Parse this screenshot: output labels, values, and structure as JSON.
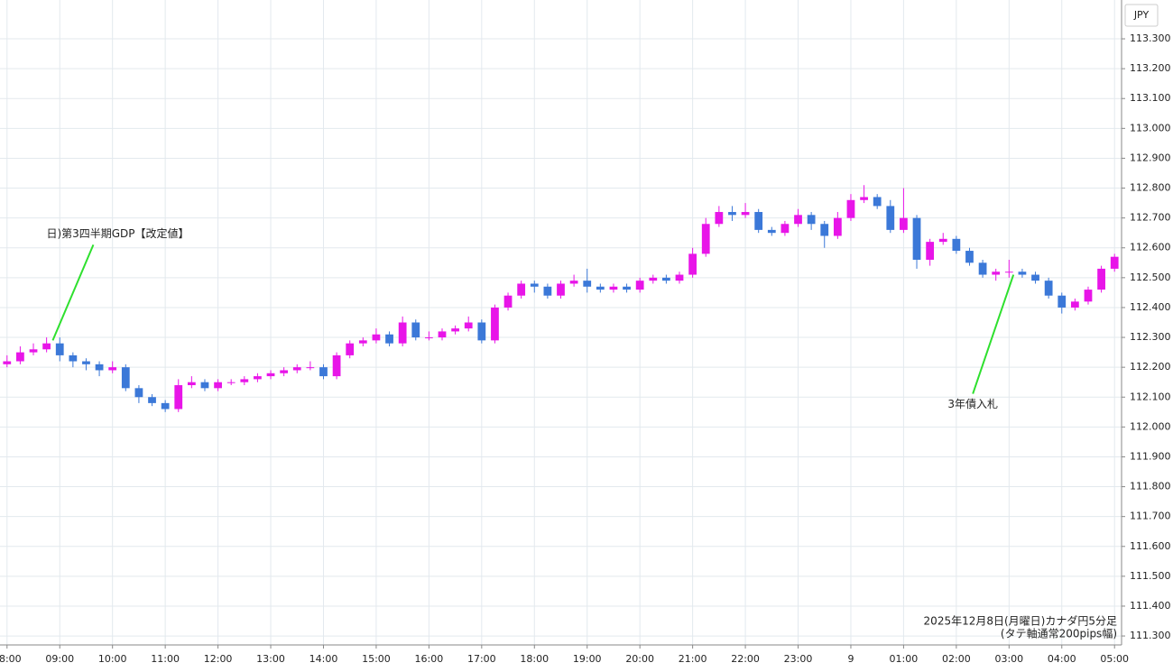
{
  "chart_data": {
    "type": "candlestick",
    "currency": "JPY",
    "footer": [
      "2025年12月8日(月曜日)カナダ円5分足",
      "(タテ軸通常200pips幅)"
    ],
    "up_color": "#e815e8",
    "down_color": "#3b78d8",
    "grid": true,
    "x": [
      0,
      15,
      30,
      45,
      60,
      75,
      90,
      105,
      120,
      135,
      150,
      165,
      180,
      195,
      210,
      225,
      240,
      255,
      270,
      285,
      300,
      315,
      330,
      345,
      360,
      375,
      390,
      405,
      420,
      435,
      450,
      465,
      480,
      495,
      510,
      525,
      540,
      555,
      570,
      585,
      600,
      615,
      630,
      645,
      660,
      675,
      690,
      705,
      720,
      735,
      750,
      765,
      780,
      795,
      810,
      825,
      840,
      855,
      870,
      885,
      900,
      915,
      930,
      945,
      960,
      975,
      990,
      1005,
      1020,
      1035,
      1050,
      1065,
      1080,
      1095,
      1110,
      1125,
      1140,
      1155,
      1170,
      1185,
      1200,
      1215,
      1230,
      1245,
      1260
    ],
    "open": [
      112.21,
      112.22,
      112.25,
      112.26,
      112.28,
      112.24,
      112.22,
      112.21,
      112.19,
      112.2,
      112.13,
      112.1,
      112.08,
      112.06,
      112.14,
      112.15,
      112.13,
      112.15,
      112.15,
      112.16,
      112.17,
      112.18,
      112.19,
      112.2,
      112.2,
      112.17,
      112.24,
      112.28,
      112.29,
      112.31,
      112.28,
      112.35,
      112.3,
      112.3,
      112.32,
      112.33,
      112.35,
      112.29,
      112.4,
      112.44,
      112.48,
      112.47,
      112.44,
      112.48,
      112.49,
      112.47,
      112.46,
      112.47,
      112.46,
      112.49,
      112.5,
      112.49,
      112.51,
      112.58,
      112.68,
      112.72,
      112.71,
      112.72,
      112.66,
      112.65,
      112.68,
      112.71,
      112.68,
      112.64,
      112.7,
      112.76,
      112.77,
      112.74,
      112.66,
      112.7,
      112.56,
      112.62,
      112.63,
      112.59,
      112.55,
      112.51,
      112.52,
      112.52,
      112.51,
      112.49,
      112.44,
      112.4,
      112.42,
      112.46,
      112.53
    ],
    "high": [
      112.24,
      112.27,
      112.28,
      112.3,
      112.3,
      112.25,
      112.23,
      112.22,
      112.22,
      112.21,
      112.14,
      112.11,
      112.09,
      112.16,
      112.17,
      112.16,
      112.16,
      112.16,
      112.17,
      112.18,
      112.19,
      112.2,
      112.21,
      112.22,
      112.21,
      112.25,
      112.29,
      112.3,
      112.33,
      112.32,
      112.37,
      112.36,
      112.32,
      112.33,
      112.34,
      112.37,
      112.36,
      112.41,
      112.45,
      112.49,
      112.49,
      112.48,
      112.49,
      112.51,
      112.53,
      112.48,
      112.48,
      112.48,
      112.5,
      112.51,
      112.51,
      112.52,
      112.6,
      112.7,
      112.74,
      112.74,
      112.75,
      112.73,
      112.67,
      112.69,
      112.73,
      112.72,
      112.69,
      112.72,
      112.78,
      112.81,
      112.78,
      112.76,
      112.8,
      112.71,
      112.63,
      112.65,
      112.64,
      112.6,
      112.56,
      112.53,
      112.56,
      112.53,
      112.52,
      112.5,
      112.45,
      112.43,
      112.47,
      112.54,
      112.58
    ],
    "low": [
      112.2,
      112.21,
      112.24,
      112.25,
      112.22,
      112.2,
      112.19,
      112.17,
      112.18,
      112.12,
      112.08,
      112.07,
      112.05,
      112.05,
      112.13,
      112.12,
      112.12,
      112.14,
      112.14,
      112.15,
      112.16,
      112.17,
      112.18,
      112.19,
      112.16,
      112.16,
      112.23,
      112.27,
      112.28,
      112.27,
      112.27,
      112.29,
      112.29,
      112.29,
      112.31,
      112.32,
      112.28,
      112.28,
      112.39,
      112.43,
      112.45,
      112.43,
      112.43,
      112.47,
      112.45,
      112.45,
      112.45,
      112.45,
      112.45,
      112.48,
      112.48,
      112.48,
      112.5,
      112.57,
      112.67,
      112.69,
      112.7,
      112.65,
      112.64,
      112.64,
      112.67,
      112.66,
      112.6,
      112.63,
      112.69,
      112.75,
      112.73,
      112.65,
      112.65,
      112.53,
      112.54,
      112.61,
      112.58,
      112.54,
      112.5,
      112.49,
      112.5,
      112.5,
      112.48,
      112.43,
      112.38,
      112.39,
      112.41,
      112.45,
      112.52
    ],
    "close": [
      112.22,
      112.25,
      112.26,
      112.28,
      112.24,
      112.22,
      112.21,
      112.19,
      112.2,
      112.13,
      112.1,
      112.08,
      112.06,
      112.14,
      112.15,
      112.13,
      112.15,
      112.15,
      112.16,
      112.17,
      112.18,
      112.19,
      112.2,
      112.2,
      112.17,
      112.24,
      112.28,
      112.29,
      112.31,
      112.28,
      112.35,
      112.3,
      112.3,
      112.32,
      112.33,
      112.35,
      112.29,
      112.4,
      112.44,
      112.48,
      112.47,
      112.44,
      112.48,
      112.49,
      112.47,
      112.46,
      112.47,
      112.46,
      112.49,
      112.5,
      112.49,
      112.51,
      112.58,
      112.68,
      112.72,
      112.71,
      112.72,
      112.66,
      112.65,
      112.68,
      112.71,
      112.68,
      112.64,
      112.7,
      112.76,
      112.77,
      112.74,
      112.66,
      112.7,
      112.56,
      112.62,
      112.63,
      112.59,
      112.55,
      112.51,
      112.52,
      112.52,
      112.51,
      112.49,
      112.44,
      112.4,
      112.42,
      112.46,
      112.53,
      112.57
    ],
    "xlim": [
      -8,
      1268
    ],
    "xticks": [
      {
        "value": 0,
        "label": "08:00"
      },
      {
        "value": 60,
        "label": "09:00"
      },
      {
        "value": 120,
        "label": "10:00"
      },
      {
        "value": 180,
        "label": "11:00"
      },
      {
        "value": 240,
        "label": "12:00"
      },
      {
        "value": 300,
        "label": "13:00"
      },
      {
        "value": 360,
        "label": "14:00"
      },
      {
        "value": 420,
        "label": "15:00"
      },
      {
        "value": 480,
        "label": "16:00"
      },
      {
        "value": 540,
        "label": "17:00"
      },
      {
        "value": 600,
        "label": "18:00"
      },
      {
        "value": 660,
        "label": "19:00"
      },
      {
        "value": 720,
        "label": "20:00"
      },
      {
        "value": 780,
        "label": "21:00"
      },
      {
        "value": 840,
        "label": "22:00"
      },
      {
        "value": 900,
        "label": "23:00"
      },
      {
        "value": 960,
        "label": "9"
      },
      {
        "value": 1020,
        "label": "01:00"
      },
      {
        "value": 1080,
        "label": "02:00"
      },
      {
        "value": 1140,
        "label": "03:00"
      },
      {
        "value": 1200,
        "label": "04:00"
      },
      {
        "value": 1260,
        "label": "05:00"
      }
    ],
    "ylim": [
      111.27,
      113.43
    ],
    "yticks": [
      {
        "value": 111.3,
        "label": "111.300"
      },
      {
        "value": 111.4,
        "label": "111.400"
      },
      {
        "value": 111.5,
        "label": "111.500"
      },
      {
        "value": 111.6,
        "label": "111.600"
      },
      {
        "value": 111.7,
        "label": "111.700"
      },
      {
        "value": 111.8,
        "label": "111.800"
      },
      {
        "value": 111.9,
        "label": "111.900"
      },
      {
        "value": 112,
        "label": "112.000"
      },
      {
        "value": 112.1,
        "label": "112.100"
      },
      {
        "value": 112.2,
        "label": "112.200"
      },
      {
        "value": 112.3,
        "label": "112.300"
      },
      {
        "value": 112.4,
        "label": "112.400"
      },
      {
        "value": 112.5,
        "label": "112.500"
      },
      {
        "value": 112.6,
        "label": "112.600"
      },
      {
        "value": 112.7,
        "label": "112.700"
      },
      {
        "value": 112.8,
        "label": "112.800"
      },
      {
        "value": 112.9,
        "label": "112.900"
      },
      {
        "value": 113,
        "label": "113.000"
      },
      {
        "value": 113.1,
        "label": "113.100"
      },
      {
        "value": 113.2,
        "label": "113.200"
      },
      {
        "value": 113.3,
        "label": "113.300"
      }
    ],
    "annotations": [
      {
        "text": "日)第3四半期GDP【改定値】",
        "x": 52,
        "y": 112.29
      },
      {
        "text": "3年債入札",
        "x": 1145,
        "y": 112.51
      }
    ]
  }
}
